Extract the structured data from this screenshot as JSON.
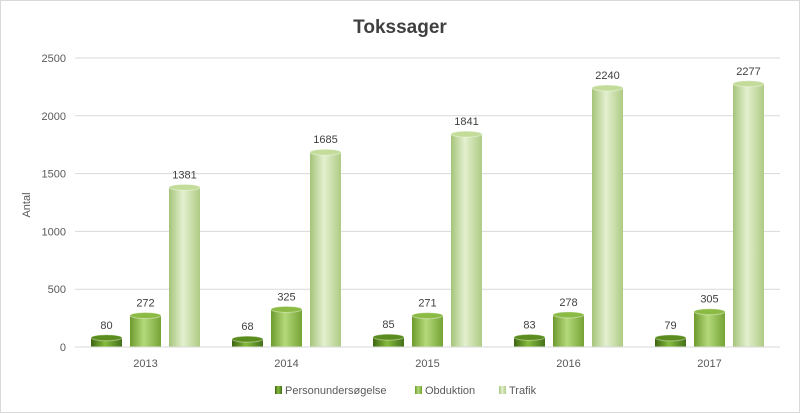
{
  "chart_data": {
    "type": "bar",
    "title": "Tokssager",
    "xlabel": "",
    "ylabel": "Antal",
    "ylim": [
      0,
      2500
    ],
    "yticks": [
      0,
      500,
      1000,
      1500,
      2000,
      2500
    ],
    "grid": true,
    "legend_position": "bottom",
    "categories": [
      "2013",
      "2014",
      "2015",
      "2016",
      "2017"
    ],
    "series": [
      {
        "name": "Personundersøgelse",
        "values": [
          80,
          68,
          85,
          83,
          79
        ],
        "color": "#5b8c1e"
      },
      {
        "name": "Obduktion",
        "values": [
          272,
          325,
          271,
          278,
          305
        ],
        "color": "#8cbb45"
      },
      {
        "name": "Trafik",
        "values": [
          1381,
          1685,
          1841,
          2240,
          2277
        ],
        "color": "#c3dc99"
      }
    ]
  }
}
